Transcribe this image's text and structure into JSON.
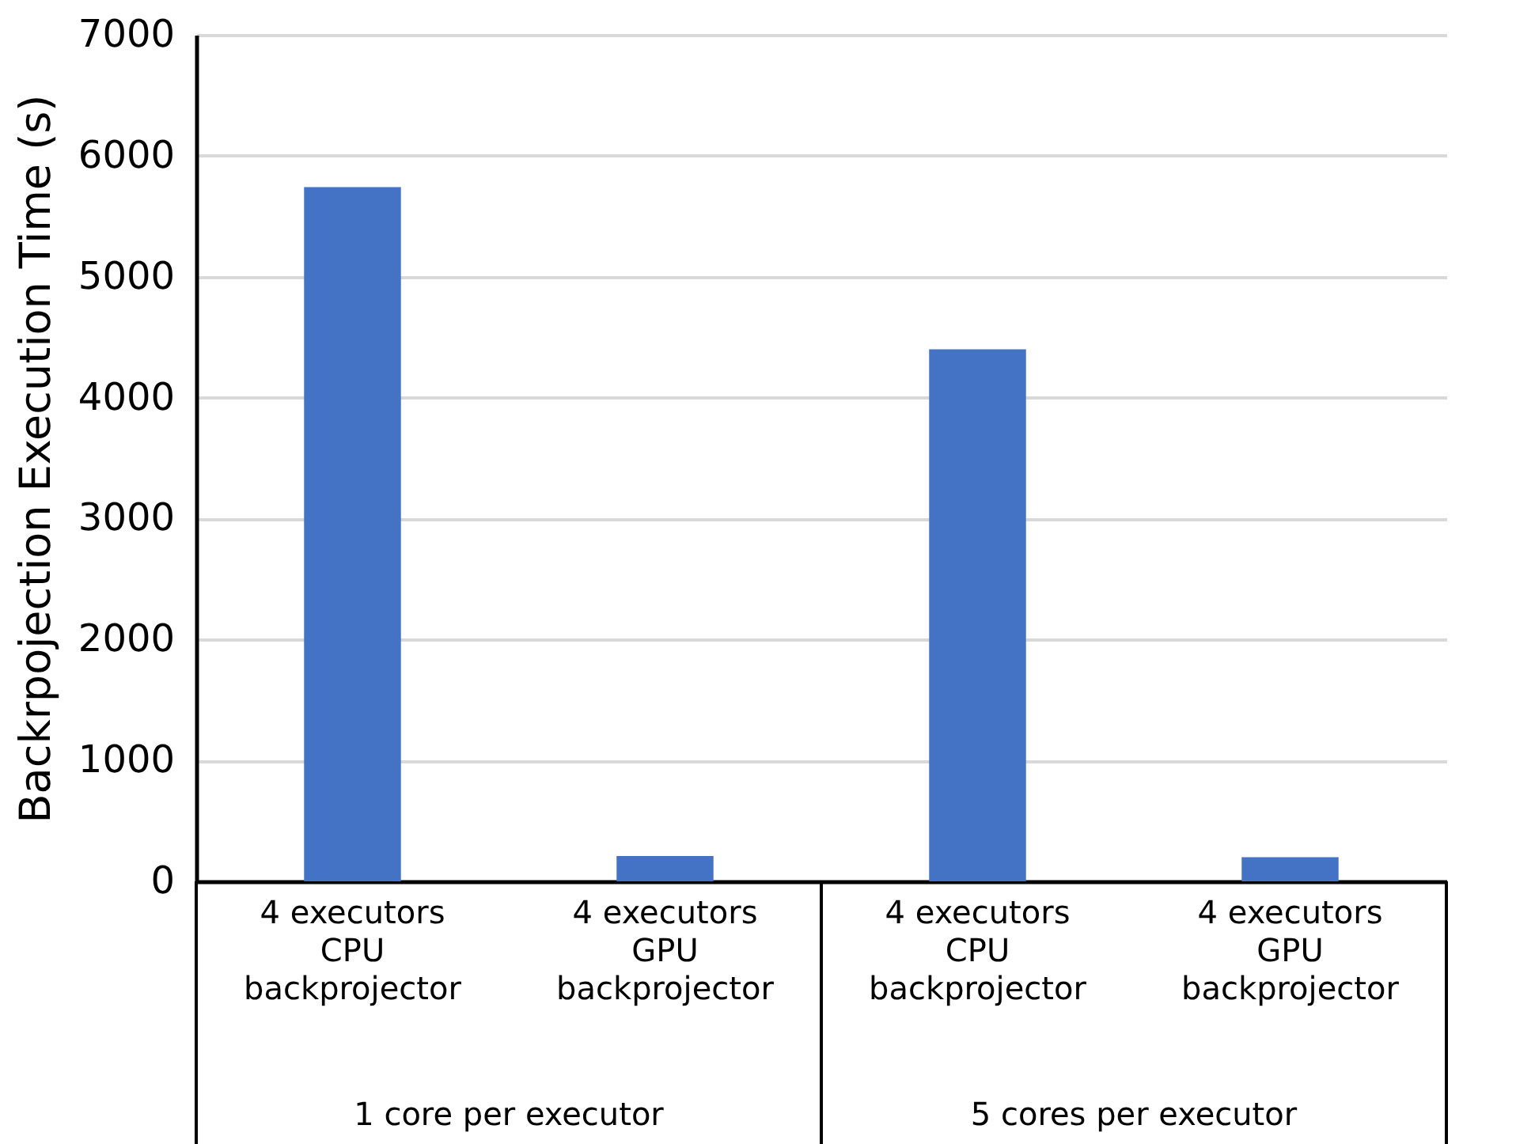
{
  "chart_data": {
    "type": "bar",
    "ylabel": "Backrpojection Execution Time (s)",
    "categories": [
      "4 executors\nCPU\nbackprojector",
      "4 executors\nGPU\nbackprojector",
      "4 executors\nCPU\nbackprojector",
      "4 executors\nGPU\nbackprojector"
    ],
    "values": [
      5740,
      210,
      4400,
      200
    ],
    "color": "#4472c4",
    "ylim": [
      0,
      7000
    ],
    "yticks": [
      0,
      1000,
      2000,
      3000,
      4000,
      5000,
      6000,
      7000
    ],
    "grid": "y",
    "annotations": [
      "1 core per executor",
      "5 cores per executor"
    ]
  }
}
